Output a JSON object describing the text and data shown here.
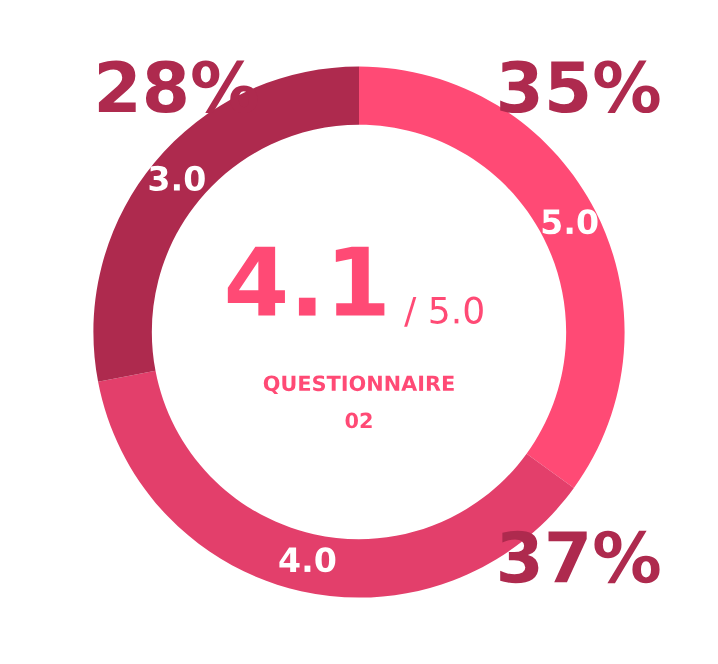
{
  "chart_data": {
    "type": "donut",
    "categories": [
      "5.0",
      "4.0",
      "3.0"
    ],
    "values": [
      35,
      37,
      28
    ],
    "colors": [
      "#ff4a75",
      "#e33f6b",
      "#ae2a4e"
    ],
    "value_labels": [
      "35%",
      "37%",
      "28%"
    ],
    "annotations": [
      "4.1",
      "/ 5.0",
      "QUESTIONNAIRE",
      "02"
    ]
  }
}
